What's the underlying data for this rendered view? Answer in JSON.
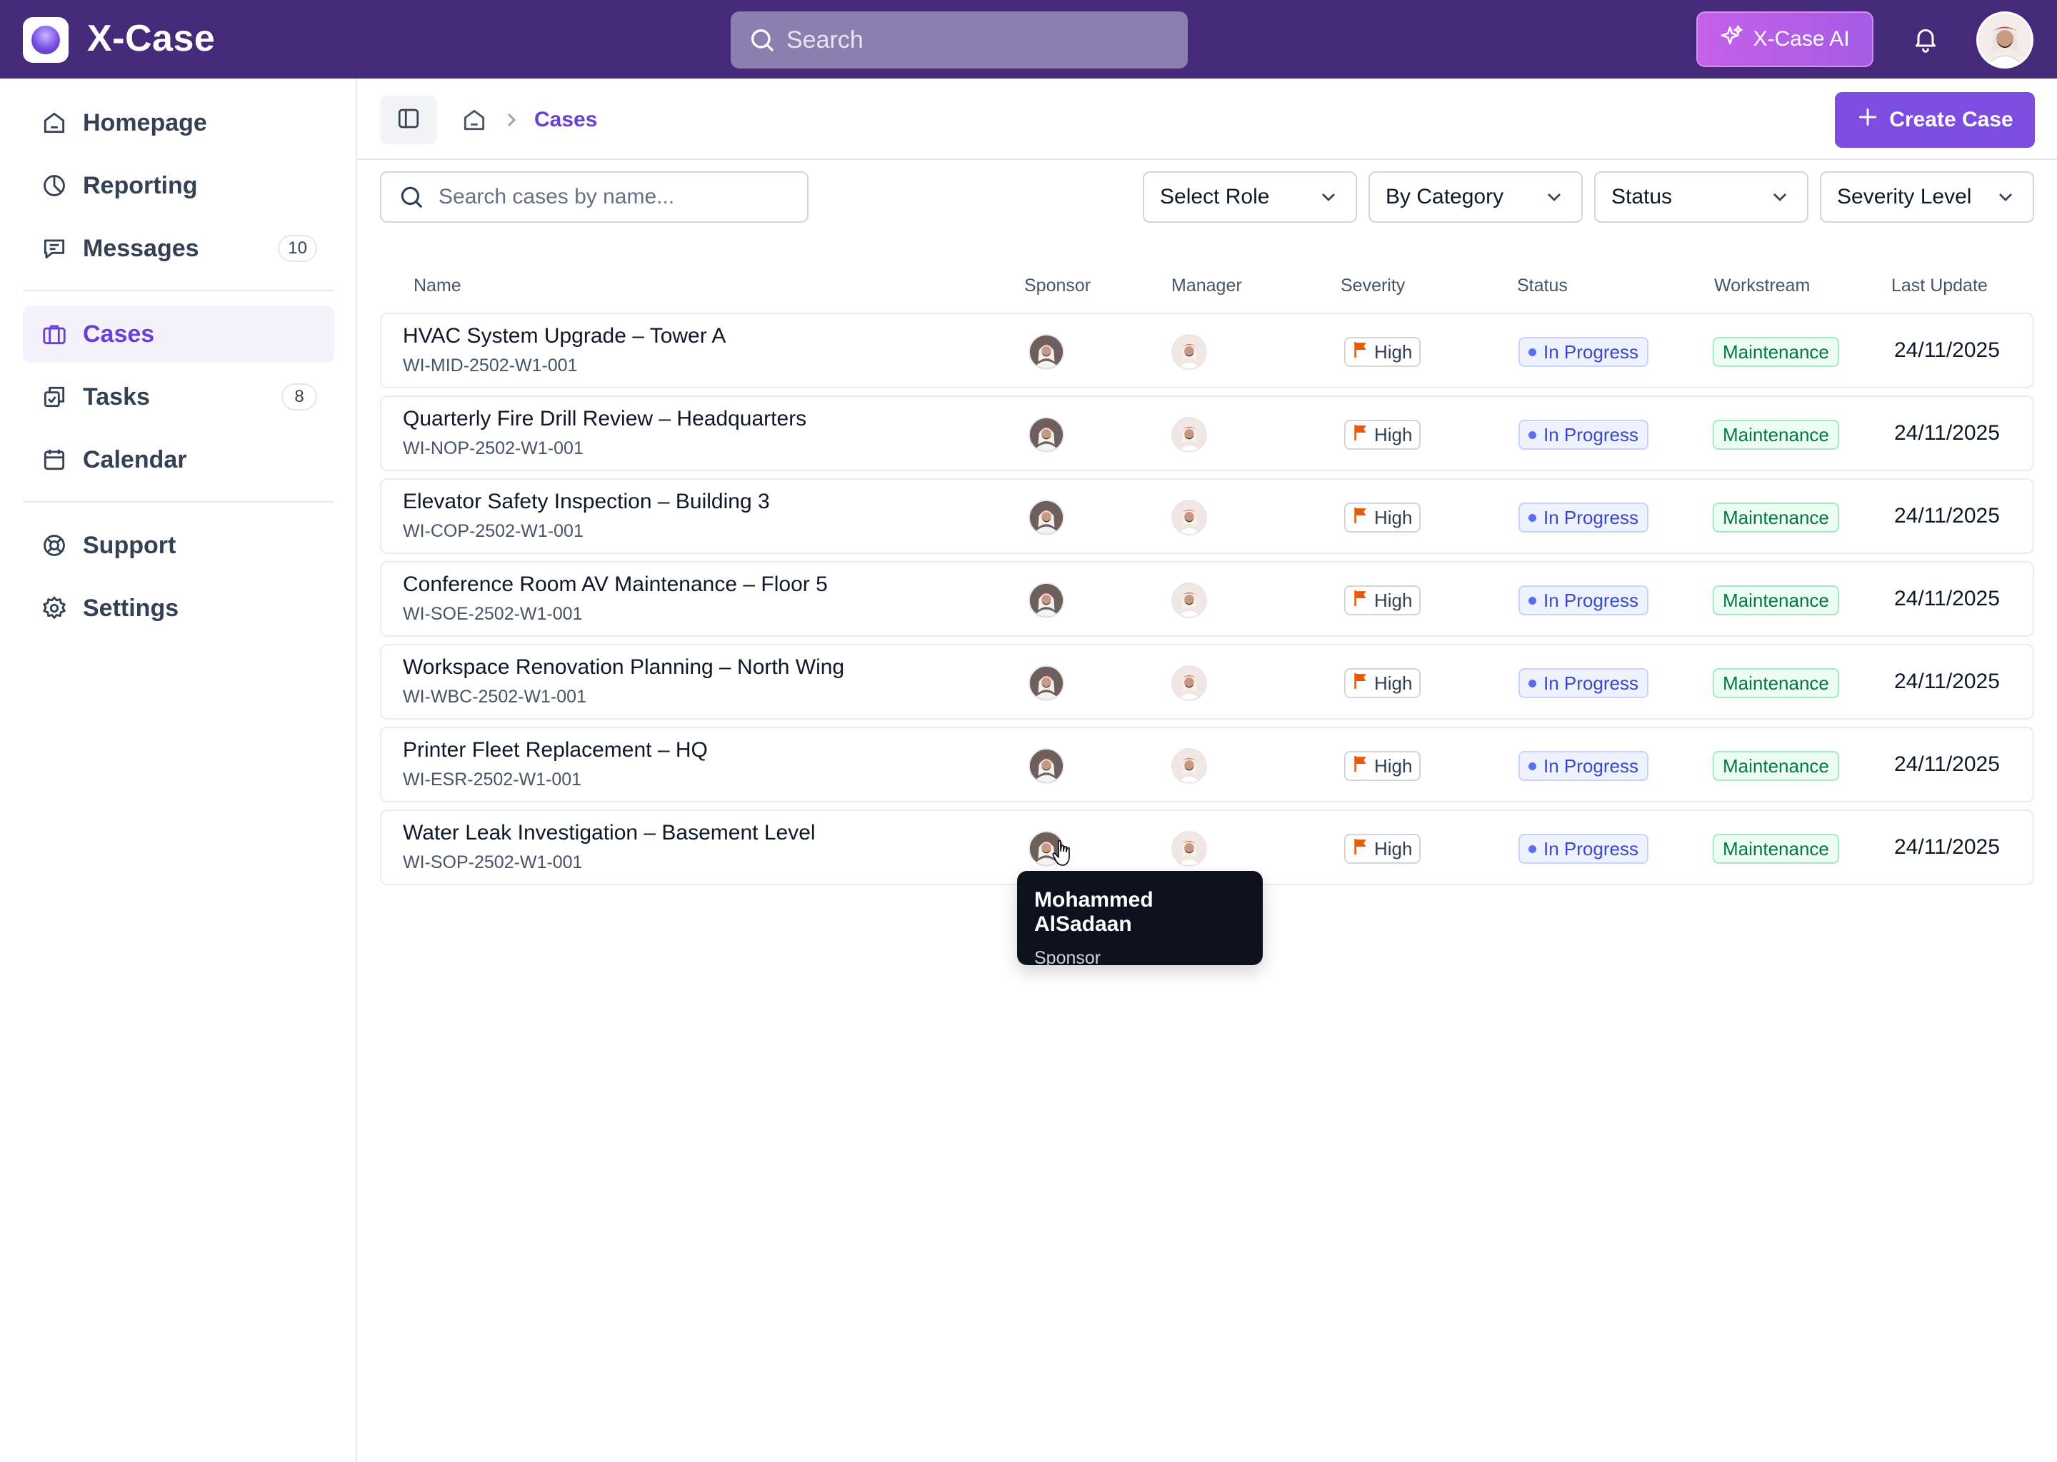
{
  "app": {
    "title": "X-Case"
  },
  "topbar": {
    "search_placeholder": "Search",
    "ai_button_label": "X-Case AI"
  },
  "sidebar": {
    "items": [
      {
        "label": "Homepage",
        "icon": "home-icon"
      },
      {
        "label": "Reporting",
        "icon": "pie-chart-icon"
      },
      {
        "label": "Messages",
        "icon": "message-icon",
        "badge": "10"
      },
      {
        "label": "Cases",
        "icon": "briefcase-icon",
        "active": true
      },
      {
        "label": "Tasks",
        "icon": "tasks-icon",
        "badge": "8"
      },
      {
        "label": "Calendar",
        "icon": "calendar-icon"
      },
      {
        "label": "Support",
        "icon": "lifebuoy-icon"
      },
      {
        "label": "Settings",
        "icon": "gear-icon"
      }
    ]
  },
  "breadcrumb": {
    "current": "Cases"
  },
  "create_button_label": "Create Case",
  "filters": {
    "search_placeholder": "Search cases by name...",
    "role": "Select Role",
    "category": "By Category",
    "status": "Status",
    "severity": "Severity Level"
  },
  "table": {
    "headers": [
      "Name",
      "Sponsor",
      "Manager",
      "Severity",
      "Status",
      "Workstream",
      "Last Update"
    ],
    "rows": [
      {
        "name": "HVAC System Upgrade – Tower A",
        "code": "WI-MID-2502-W1-001",
        "severity": "High",
        "status": "In Progress",
        "workstream": "Maintenance",
        "last_update": "24/11/2025"
      },
      {
        "name": "Quarterly Fire Drill Review – Headquarters",
        "code": "WI-NOP-2502-W1-001",
        "severity": "High",
        "status": "In Progress",
        "workstream": "Maintenance",
        "last_update": "24/11/2025"
      },
      {
        "name": "Elevator Safety Inspection – Building 3",
        "code": "WI-COP-2502-W1-001",
        "severity": "High",
        "status": "In Progress",
        "workstream": "Maintenance",
        "last_update": "24/11/2025"
      },
      {
        "name": "Conference Room AV Maintenance – Floor 5",
        "code": "WI-SOE-2502-W1-001",
        "severity": "High",
        "status": "In Progress",
        "workstream": "Maintenance",
        "last_update": "24/11/2025"
      },
      {
        "name": "Workspace Renovation Planning – North Wing",
        "code": "WI-WBC-2502-W1-001",
        "severity": "High",
        "status": "In Progress",
        "workstream": "Maintenance",
        "last_update": "24/11/2025"
      },
      {
        "name": "Printer Fleet Replacement – HQ",
        "code": "WI-ESR-2502-W1-001",
        "severity": "High",
        "status": "In Progress",
        "workstream": "Maintenance",
        "last_update": "24/11/2025"
      },
      {
        "name": "Water Leak Investigation – Basement Level",
        "code": "WI-SOP-2502-W1-001",
        "severity": "High",
        "status": "In Progress",
        "workstream": "Maintenance",
        "last_update": "24/11/2025"
      }
    ]
  },
  "tooltip": {
    "name": "Mohammed AlSadaan",
    "role": "Sponsor"
  },
  "colors": {
    "topbar": "#442a78",
    "accent": "#7c4dde",
    "severity_flag": "#e8590c",
    "status_blue": "#3b48c8",
    "workstream_green": "#067647"
  }
}
